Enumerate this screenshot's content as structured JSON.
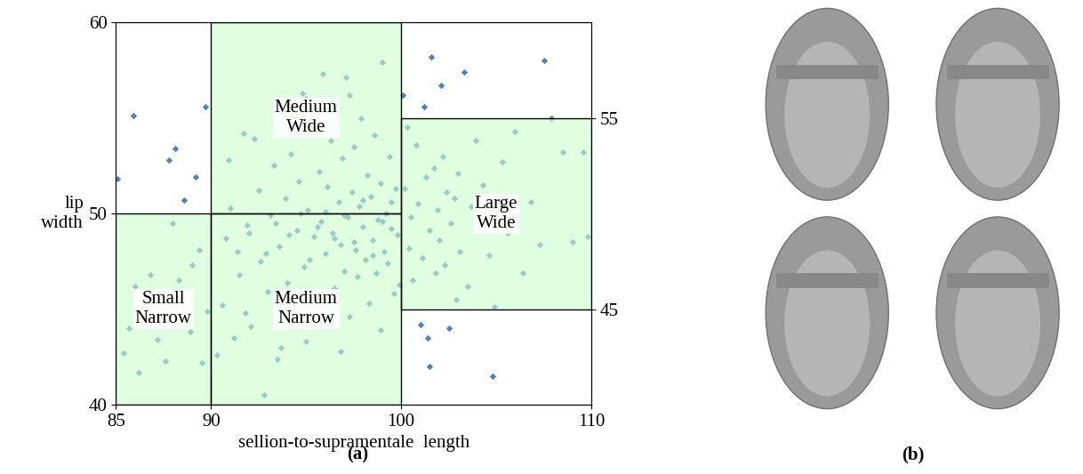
{
  "chart_data": {
    "type": "scatter",
    "panel_label": "(a)",
    "x_label": "sellion-to-supramentale  length",
    "y_label": "lip\nwidth",
    "xlim": [
      85,
      110
    ],
    "xticks": [
      85,
      90,
      100,
      110
    ],
    "ylim": [
      40,
      60
    ],
    "yticks": [
      40,
      50,
      60
    ],
    "y2lim": [
      40,
      60
    ],
    "y2ticks": [
      45,
      55
    ],
    "color": "#4f81bd",
    "marker": "diamond",
    "regions": [
      {
        "name": "Small Narrow",
        "x": [
          85,
          90
        ],
        "y": [
          40,
          50
        ],
        "color": "#ccffcc"
      },
      {
        "name": "Medium Narrow",
        "x": [
          90,
          100
        ],
        "y": [
          40,
          50
        ],
        "color": "#ccffcc"
      },
      {
        "name": "Medium Wide",
        "x": [
          90,
          100
        ],
        "y": [
          50,
          60
        ],
        "color": "#ccffcc"
      },
      {
        "name": "Large Wide",
        "x": [
          100,
          110
        ],
        "y": [
          45,
          55
        ],
        "color": "#ccffcc"
      }
    ],
    "x": [
      85.1,
      85.4,
      85.9,
      86.2,
      86.0,
      86.5,
      87.2,
      87.6,
      87.8,
      88.1,
      88.3,
      88.6,
      88.9,
      89.2,
      89.5,
      89.7,
      89.4,
      89.8,
      86.8,
      88.0,
      89.0,
      85.7,
      90.3,
      90.6,
      90.8,
      91.0,
      91.2,
      91.5,
      91.7,
      91.9,
      92.1,
      92.3,
      92.5,
      92.6,
      92.8,
      93.0,
      93.1,
      93.3,
      93.5,
      93.6,
      93.8,
      93.9,
      94.0,
      94.2,
      94.3,
      94.5,
      94.6,
      94.8,
      94.9,
      95.0,
      95.1,
      95.3,
      95.4,
      95.5,
      95.7,
      95.8,
      95.9,
      96.0,
      96.1,
      96.2,
      96.3,
      96.4,
      96.5,
      96.6,
      96.7,
      96.8,
      96.9,
      97.0,
      97.1,
      97.2,
      97.3,
      97.4,
      97.5,
      97.6,
      97.7,
      97.8,
      97.9,
      98.0,
      98.1,
      98.2,
      98.3,
      98.4,
      98.5,
      98.6,
      98.7,
      98.8,
      98.9,
      99.0,
      99.1,
      99.2,
      99.3,
      99.4,
      99.5,
      99.6,
      99.7,
      99.8,
      99.9,
      91.4,
      92.0,
      92.9,
      93.4,
      94.1,
      94.7,
      95.2,
      95.6,
      96.0,
      96.5,
      97.0,
      97.5,
      98.0,
      98.5,
      99.0,
      99.5,
      90.9,
      91.8,
      93.7,
      96.8,
      98.9,
      97.3,
      95.0,
      100.1,
      100.2,
      100.4,
      100.5,
      100.6,
      100.8,
      100.9,
      101.0,
      101.1,
      101.2,
      101.3,
      101.4,
      101.5,
      101.6,
      101.7,
      101.8,
      101.9,
      102.0,
      102.1,
      102.2,
      102.3,
      102.4,
      102.5,
      102.6,
      102.8,
      103.0,
      103.1,
      103.3,
      103.5,
      103.7,
      103.9,
      104.1,
      104.3,
      104.6,
      104.8,
      104.9,
      105.0,
      105.3,
      105.6,
      106.0,
      106.4,
      106.8,
      107.3,
      107.5,
      107.9,
      108.5,
      109.0,
      109.6,
      109.8,
      101.5,
      100.3,
      102.9
    ],
    "values": [
      51.8,
      42.7,
      55.1,
      41.7,
      46.2,
      44.5,
      43.4,
      42.3,
      52.8,
      53.4,
      46.5,
      50.7,
      43.8,
      51.9,
      42.2,
      55.6,
      48.1,
      44.9,
      46.8,
      49.5,
      47.3,
      44.0,
      42.6,
      45.2,
      48.7,
      50.3,
      43.5,
      46.8,
      54.2,
      49.4,
      44.1,
      53.9,
      51.2,
      47.5,
      40.5,
      45.9,
      49.9,
      52.5,
      42.4,
      48.3,
      55.2,
      50.8,
      46.4,
      53.1,
      44.8,
      49.1,
      51.7,
      56.3,
      47.2,
      43.3,
      50.2,
      54.6,
      48.8,
      45.6,
      52.2,
      49.6,
      57.3,
      47.9,
      51.4,
      44.2,
      53.8,
      49.0,
      46.1,
      55.7,
      50.6,
      48.4,
      52.9,
      47.0,
      57.1,
      49.8,
      44.6,
      51.1,
      53.5,
      48.1,
      46.7,
      50.4,
      55.0,
      49.3,
      47.6,
      52.0,
      45.3,
      50.9,
      48.6,
      54.1,
      46.9,
      49.7,
      51.6,
      57.9,
      48.0,
      50.0,
      47.4,
      53.0,
      49.2,
      45.8,
      51.3,
      48.9,
      46.3,
      48.0,
      49.0,
      47.9,
      49.5,
      48.9,
      50.0,
      47.6,
      49.3,
      50.1,
      48.7,
      49.9,
      48.5,
      50.7,
      47.8,
      49.6,
      50.6,
      52.8,
      44.8,
      43.0,
      42.8,
      43.9,
      56.2,
      56.0,
      56.2,
      51.3,
      48.2,
      49.8,
      46.5,
      53.6,
      50.5,
      44.2,
      47.7,
      55.6,
      51.9,
      43.5,
      49.1,
      58.2,
      52.4,
      46.9,
      50.2,
      48.6,
      56.7,
      53.0,
      47.3,
      51.1,
      44.0,
      49.5,
      50.8,
      52.1,
      48.0,
      57.4,
      46.2,
      50.4,
      53.8,
      49.3,
      51.5,
      47.8,
      41.5,
      45.1,
      50.1,
      52.7,
      49.0,
      54.3,
      46.9,
      50.6,
      48.4,
      58.0,
      55.0,
      53.2,
      48.5,
      53.2,
      48.8,
      42.0,
      54.5,
      45.5
    ]
  },
  "panel_b": {
    "label": "(b)"
  }
}
